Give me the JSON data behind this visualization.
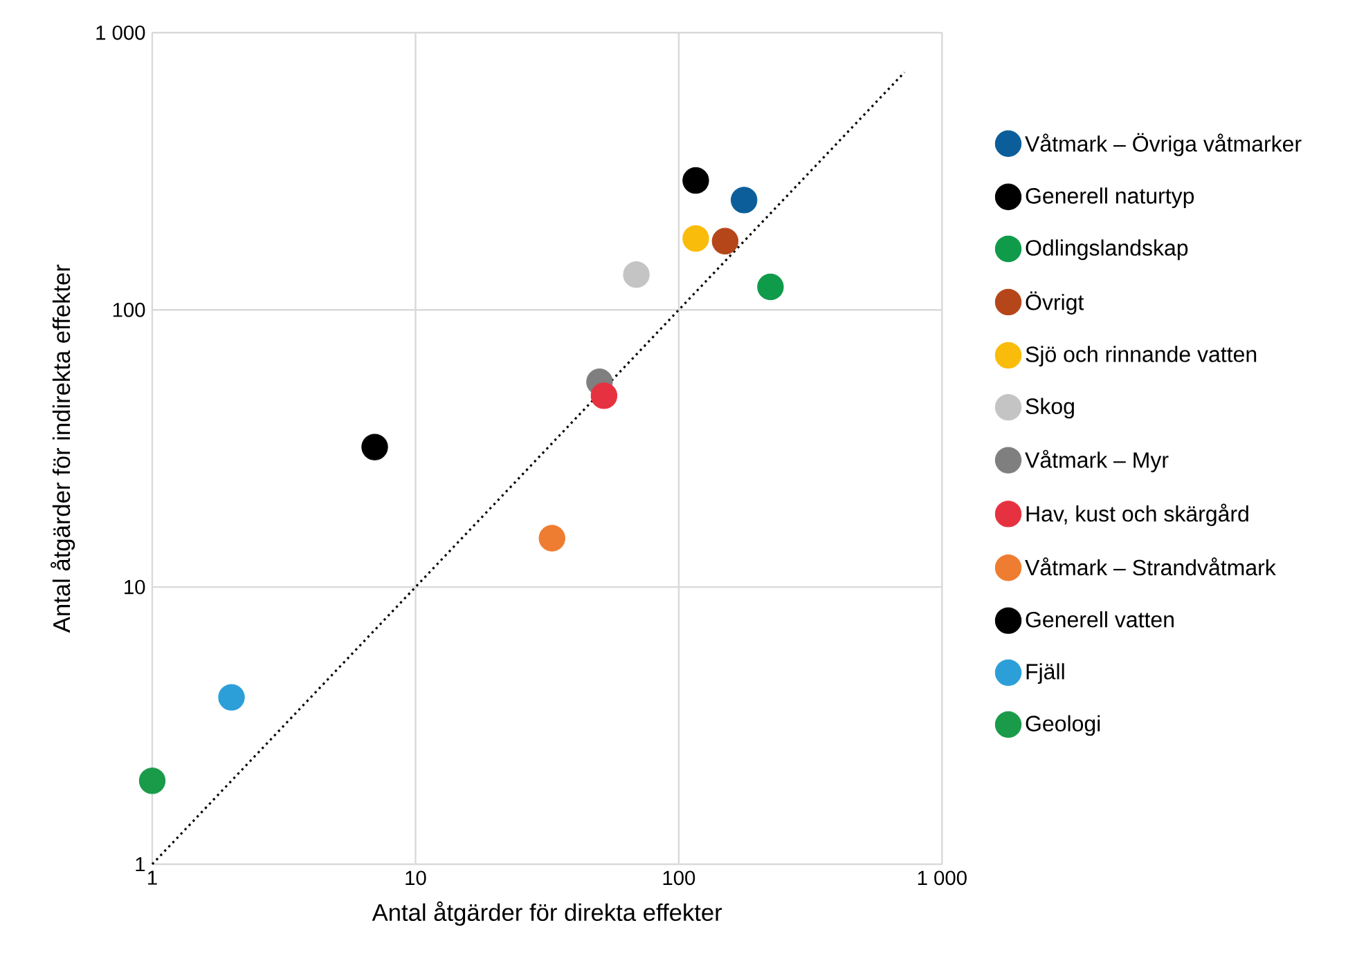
{
  "chart_data": {
    "type": "scatter",
    "xlabel": "Antal åtgärder för direkta effekter",
    "ylabel": "Antal åtgärder för indirekta effekter",
    "log": "xy",
    "grid": true,
    "legend": "right",
    "xlim": [
      1,
      1000
    ],
    "ylim": [
      1,
      1000
    ],
    "xticks": [
      1,
      10,
      100,
      {
        "value": 1000,
        "label": "1 000"
      }
    ],
    "yticks": [
      1,
      10,
      100,
      {
        "value": 1000,
        "label": "1 000"
      }
    ],
    "series": [
      {
        "name": "Våtmark – Övriga våtmarker",
        "color": "#0b5e99",
        "marker": "circle",
        "x": [
          177
        ],
        "values": [
          249
        ]
      },
      {
        "name": "Generell naturtyp",
        "color": "#000000",
        "marker": "circle",
        "x": [
          116
        ],
        "values": [
          293
        ]
      },
      {
        "name": "Odlingslandskap",
        "color": "#0f9b4a",
        "marker": "circle",
        "x": [
          223
        ],
        "values": [
          121
        ]
      },
      {
        "name": "Övrigt",
        "color": "#b5461a",
        "marker": "circle",
        "x": [
          150
        ],
        "values": [
          177
        ]
      },
      {
        "name": "Sjö och rinnande vatten",
        "color": "#f9bc0b",
        "marker": "circle",
        "x": [
          116
        ],
        "values": [
          181
        ]
      },
      {
        "name": "Skog",
        "color": "#c4c4c4",
        "marker": "circle",
        "x": [
          69
        ],
        "values": [
          134
        ]
      },
      {
        "name": "Våtmark – Myr",
        "color": "#7f7f7f",
        "marker": "circle",
        "x": [
          50
        ],
        "values": [
          55
        ]
      },
      {
        "name": "Hav, kust och skärgård",
        "color": "#e63240",
        "marker": "circle",
        "x": [
          52
        ],
        "values": [
          49
        ]
      },
      {
        "name": "Våtmark – Strandvåtmark",
        "color": "#ee7d31",
        "marker": "circle",
        "x": [
          33
        ],
        "values": [
          15
        ]
      },
      {
        "name": "Generell vatten",
        "color": "#000000",
        "marker": "circle",
        "x": [
          7
        ],
        "values": [
          32
        ]
      },
      {
        "name": "Fjäll",
        "color": "#2c9fd8",
        "marker": "circle",
        "x": [
          2
        ],
        "values": [
          4
        ]
      },
      {
        "name": "Geologi",
        "color": "#1a9b4a",
        "marker": "circle",
        "x": [
          1
        ],
        "values": [
          2
        ]
      },
      {
        "type": "line",
        "color": "#000000",
        "line_style": "dotted",
        "marker": "none",
        "x": [
          1,
          720
        ],
        "values": [
          1,
          720
        ]
      }
    ]
  }
}
